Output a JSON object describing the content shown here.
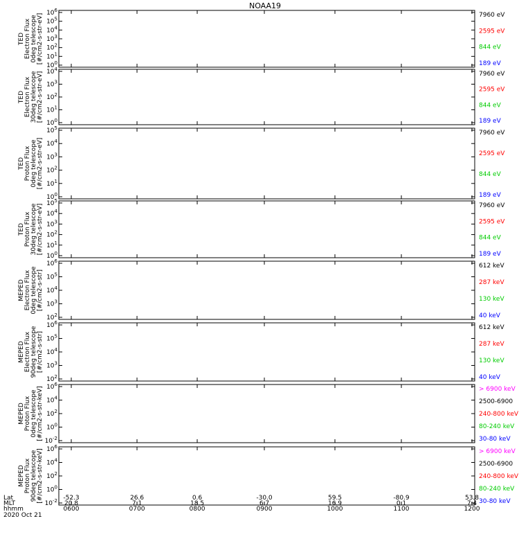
{
  "chart_data": {
    "type": "line",
    "title": "NOAA19",
    "x_ticks": [
      "0600",
      "0700",
      "0800",
      "0900",
      "1000",
      "1100",
      "1200"
    ],
    "footer": {
      "row_labels": [
        "Lat",
        "MLT",
        "hhmm",
        "2020 Oct 21"
      ],
      "lat": [
        "-52.3",
        "26.6",
        "0.6",
        "-30.0",
        "59.5",
        "-80.9",
        "53.8"
      ],
      "mlt": [
        "20.8",
        "7.1",
        "18.5",
        "6.7",
        "16.9",
        "0.1",
        "7.4"
      ]
    },
    "panels": [
      {
        "ylabel": [
          "TED",
          "Electron Flux",
          "0deg telescope",
          "[#/cm2-s-str-eV]"
        ],
        "yticks": [
          "10^6",
          "10^5",
          "10^4",
          "10^3",
          "10^2",
          "10^1",
          "10^0"
        ],
        "series": [
          {
            "name": "7960 eV",
            "color": "#000000"
          },
          {
            "name": "2595 eV",
            "color": "#ff0000"
          },
          {
            "name": "844 eV",
            "color": "#00cc00"
          },
          {
            "name": "189 eV",
            "color": "#0000ff"
          }
        ]
      },
      {
        "ylabel": [
          "TED",
          "Electron Flux",
          "30deg telescope",
          "[#/cm2-s-str-eV]"
        ],
        "yticks": [
          "10^4",
          "10^3",
          "10^2",
          "10^1",
          "10^0"
        ],
        "series": [
          {
            "name": "7960 eV",
            "color": "#000000"
          },
          {
            "name": "2595 eV",
            "color": "#ff0000"
          },
          {
            "name": "844 eV",
            "color": "#00cc00"
          },
          {
            "name": "189 eV",
            "color": "#0000ff"
          }
        ]
      },
      {
        "ylabel": [
          "TED",
          "Proton Flux",
          "0deg telescope",
          "[#/cm2-s-str-eV]"
        ],
        "yticks": [
          "10^5",
          "10^4",
          "10^3",
          "10^2",
          "10^1",
          "10^0"
        ],
        "series": [
          {
            "name": "7960 eV",
            "color": "#000000"
          },
          {
            "name": "2595 eV",
            "color": "#ff0000"
          },
          {
            "name": "844 eV",
            "color": "#00cc00"
          },
          {
            "name": "189 eV",
            "color": "#0000ff"
          }
        ]
      },
      {
        "ylabel": [
          "TED",
          "Proton Flux",
          "30deg telescope",
          "[#/cm2-s-str-eV]"
        ],
        "yticks": [
          "10^5",
          "10^4",
          "10^3",
          "10^2",
          "10^1",
          "10^0"
        ],
        "series": [
          {
            "name": "7960 eV",
            "color": "#000000"
          },
          {
            "name": "2595 eV",
            "color": "#ff0000"
          },
          {
            "name": "844 eV",
            "color": "#00cc00"
          },
          {
            "name": "189 eV",
            "color": "#0000ff"
          }
        ]
      },
      {
        "ylabel": [
          "MEPED",
          "Electron Flux",
          "0deg telescope",
          "[#/cm2-s-str]"
        ],
        "yticks": [
          "10^6",
          "10^5",
          "10^4",
          "10^3",
          "10^2"
        ],
        "series": [
          {
            "name": "612 keV",
            "color": "#000000"
          },
          {
            "name": "287 keV",
            "color": "#ff0000"
          },
          {
            "name": "130 keV",
            "color": "#00cc00"
          },
          {
            "name": "40 keV",
            "color": "#0000ff"
          }
        ]
      },
      {
        "ylabel": [
          "MEPED",
          "Electron Flux",
          "90deg telescope",
          "[#/cm2-s-str]"
        ],
        "yticks": [
          "10^6",
          "10^5",
          "10^4",
          "10^3",
          "10^2"
        ],
        "series": [
          {
            "name": "612 keV",
            "color": "#000000"
          },
          {
            "name": "287 keV",
            "color": "#ff0000"
          },
          {
            "name": "130 keV",
            "color": "#00cc00"
          },
          {
            "name": "40 keV",
            "color": "#0000ff"
          }
        ]
      },
      {
        "ylabel": [
          "MEPED",
          "Proton Flux",
          "0deg telescope",
          "[#/cm2-s-str-keV]"
        ],
        "yticks": [
          "10^6",
          "10^4",
          "10^2",
          "10^0",
          "10^-2"
        ],
        "series": [
          {
            "name": "> 6900 keV",
            "color": "#ff00ff"
          },
          {
            "name": "2500-6900",
            "color": "#000000"
          },
          {
            "name": "240-800 keV",
            "color": "#ff0000"
          },
          {
            "name": "80-240 keV",
            "color": "#00cc00"
          },
          {
            "name": "30-80 keV",
            "color": "#0000ff"
          }
        ]
      },
      {
        "ylabel": [
          "MEPED",
          "Proton Flux",
          "90deg telescope",
          "[#/cm2-s-str-keV]"
        ],
        "yticks": [
          "10^6",
          "10^4",
          "10^2",
          "10^0",
          "10^-2"
        ],
        "series": [
          {
            "name": "> 6900 keV",
            "color": "#ff00ff"
          },
          {
            "name": "2500-6900",
            "color": "#000000"
          },
          {
            "name": "240-800 keV",
            "color": "#ff0000"
          },
          {
            "name": "80-240 keV",
            "color": "#00cc00"
          },
          {
            "name": "30-80 keV",
            "color": "#0000ff"
          }
        ]
      }
    ]
  }
}
